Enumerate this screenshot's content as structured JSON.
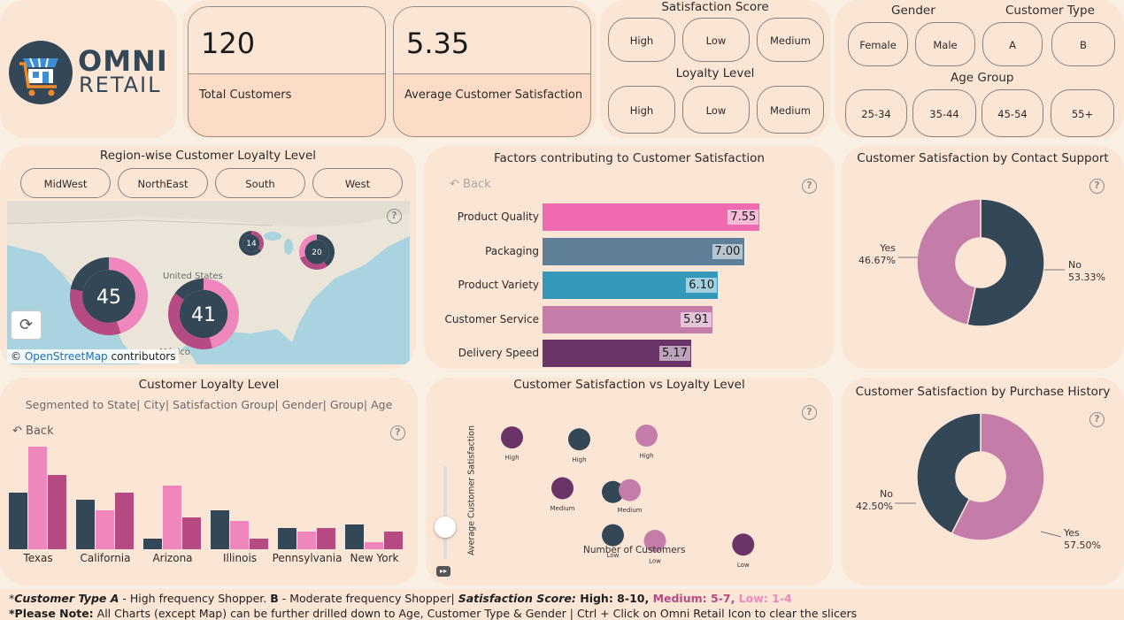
{
  "logo": {
    "name_line1": "OMNI",
    "name_line2": "RETAIL"
  },
  "kpis": [
    {
      "value": "120",
      "label": "Total Customers"
    },
    {
      "value": "5.35",
      "label": "Average Customer Satisfaction"
    }
  ],
  "slicers": {
    "satisfaction_title": "Satisfaction Score",
    "satisfaction_options": [
      "High",
      "Low",
      "Medium"
    ],
    "loyalty_title": "Loyalty Level",
    "loyalty_options": [
      "High",
      "Low",
      "Medium"
    ],
    "gender_title": "Gender",
    "gender_options": [
      "Female",
      "Male"
    ],
    "customer_type_title": "Customer Type",
    "customer_type_options": [
      "A",
      "B"
    ],
    "age_title": "Age Group",
    "age_options": [
      "25-34",
      "35-44",
      "45-54",
      "55+"
    ]
  },
  "map_panel": {
    "title": "Region-wise Customer Loyalty Level",
    "regions": [
      "MidWest",
      "NorthEast",
      "South",
      "West"
    ],
    "country_label": "United States",
    "mexico_label": "México",
    "attribution_prefix": "©",
    "attribution_link": "OpenStreetMap",
    "attribution_suffix": "contributors",
    "bubbles": [
      {
        "value": "45"
      },
      {
        "value": "41"
      },
      {
        "value": "14"
      },
      {
        "value": "20"
      }
    ]
  },
  "factors_panel": {
    "title": "Factors contributing to Customer Satisfaction",
    "back_label": "Back",
    "help": "?"
  },
  "contact_panel": {
    "title": "Customer Satisfaction by Contact Support",
    "help": "?"
  },
  "loyalty_panel": {
    "title": "Customer Loyalty Level",
    "subtitle": "Segmented to State| City| Satisfaction Group| Gender| Group| Age",
    "back_label": "Back",
    "help": "?"
  },
  "scatter_panel": {
    "title": "Customer Satisfaction vs Loyalty Level",
    "help": "?"
  },
  "purchase_panel": {
    "title": "Customer Satisfaction by Purchase History",
    "help": "?"
  },
  "footer": {
    "l1_prefix": "*",
    "l1_ctype": "Customer Type A",
    "l1_a_text": " - High frequency Shopper.  ",
    "l1_b": "B",
    "l1_b_text": " - Moderate frequency Shopper| ",
    "l1_sat": "Satisfaction Score:",
    "l1_high": " High: 8-10,",
    "l1_med": "  Medium: 5-7,",
    "l1_low": " Low: 1-4",
    "l2_note": "*Please Note:",
    "l2_text": " All Charts (except Map) can be further drilled down to Age, Customer Type & Gender | Ctrl + Click on Omni Retail Icon to clear the slicers"
  },
  "colors": {
    "dark": "#344756",
    "pink": "#ef87bd",
    "rose": "#b64b83",
    "plum": "#6a3468",
    "mauve": "#c47da8",
    "slate": "#5f7f99",
    "teal": "#3498ba",
    "hotpink": "#ef6aae"
  },
  "chart_data": [
    {
      "type": "bar",
      "orientation": "horizontal",
      "categories": [
        "Product Quality",
        "Packaging",
        "Product Variety",
        "Customer Service",
        "Delivery Speed"
      ],
      "values": [
        7.55,
        7.0,
        6.1,
        5.91,
        5.17
      ],
      "value_labels": [
        "7.55",
        "7.00",
        "6.10",
        "5.91",
        "5.17"
      ],
      "xlim": [
        0,
        10
      ]
    },
    {
      "type": "pie",
      "labels": [
        "Yes",
        "No"
      ],
      "values": [
        46.67,
        53.33
      ],
      "value_labels": [
        "46.67%",
        "53.33%"
      ]
    },
    {
      "type": "bar",
      "categories": [
        "Texas",
        "California",
        "Arizona",
        "Illinois",
        "Pennsylvania",
        "New York"
      ],
      "series": [
        {
          "values": [
            16,
            14,
            3,
            11,
            6,
            7
          ]
        },
        {
          "values": [
            29,
            11,
            18,
            8,
            5,
            2
          ]
        },
        {
          "values": [
            21,
            16,
            9,
            3,
            6,
            5
          ]
        }
      ],
      "ylim": [
        0,
        30
      ]
    },
    {
      "type": "scatter",
      "ylabel": "Average Customer Satisfaction",
      "xlabel": "Number of Customers",
      "points": [
        {
          "label": "High",
          "group": "High",
          "x": 1,
          "y": 8.7
        },
        {
          "label": "High",
          "group": "Medium",
          "x": 2.6,
          "y": 8.6
        },
        {
          "label": "High",
          "group": "Low",
          "x": 4.2,
          "y": 8.8
        },
        {
          "label": "Medium",
          "group": "High",
          "x": 2.2,
          "y": 6.0
        },
        {
          "label": "",
          "group": "Medium",
          "x": 3.4,
          "y": 5.8
        },
        {
          "label": "Medium",
          "group": "Low",
          "x": 3.8,
          "y": 5.9
        },
        {
          "label": "Low",
          "group": "Medium",
          "x": 3.4,
          "y": 3.5
        },
        {
          "label": "Low",
          "group": "Low",
          "x": 4.4,
          "y": 3.2
        },
        {
          "label": "Low",
          "group": "High",
          "x": 6.5,
          "y": 3.0
        }
      ],
      "xlim": [
        0,
        8
      ],
      "ylim": [
        2,
        10
      ]
    },
    {
      "type": "pie",
      "labels": [
        "No",
        "Yes"
      ],
      "values": [
        42.5,
        57.5
      ],
      "value_labels": [
        "42.50%",
        "57.50%"
      ]
    }
  ]
}
